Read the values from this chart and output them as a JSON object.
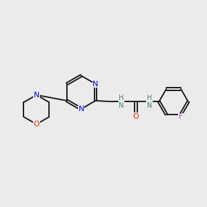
{
  "background_color": "#ebebeb",
  "bond_color": "#1a1a1a",
  "N_color": "#0000ee",
  "O_color": "#ee2200",
  "F_color": "#cc44bb",
  "NH_color": "#3a8080",
  "figsize": [
    3.0,
    3.0
  ],
  "dpi": 100,
  "xlim": [
    0,
    10
  ],
  "ylim": [
    0,
    10
  ]
}
